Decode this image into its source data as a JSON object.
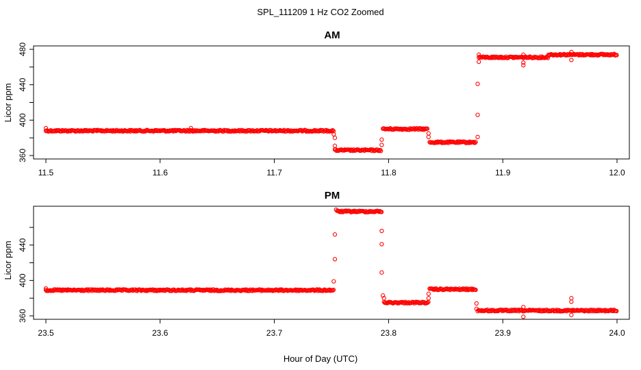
{
  "figure": {
    "title": "SPL_111209  1 Hz CO2 Zoomed",
    "xlabel": "Hour of Day (UTC)"
  },
  "style": {
    "point_color": "#ff0000",
    "axis_color": "#000000"
  },
  "chart_data": [
    {
      "type": "scatter",
      "title": "AM",
      "ylabel": "Licor ppm",
      "xlim": [
        11.5,
        12.0
      ],
      "ylim": [
        360,
        480
      ],
      "xticks": [
        "11.5",
        "11.6",
        "11.7",
        "11.8",
        "11.9",
        "12.0"
      ],
      "yticks": [
        "360",
        "400",
        "440",
        "480"
      ],
      "segments": [
        {
          "x0": 11.5,
          "x1": 11.752,
          "y": 388
        },
        {
          "x0": 11.753,
          "x1": 11.794,
          "y": 366
        },
        {
          "x0": 11.795,
          "x1": 11.834,
          "y": 390
        },
        {
          "x0": 11.836,
          "x1": 11.877,
          "y": 375
        },
        {
          "x0": 11.879,
          "x1": 11.94,
          "y": 471
        },
        {
          "x0": 11.94,
          "x1": 12.0,
          "y": 474
        }
      ],
      "points": [
        [
          11.5,
          391
        ],
        [
          11.627,
          391
        ],
        [
          11.752,
          384
        ],
        [
          11.753,
          380
        ],
        [
          11.753,
          371
        ],
        [
          11.794,
          372
        ],
        [
          11.794,
          378
        ],
        [
          11.835,
          385
        ],
        [
          11.835,
          381
        ],
        [
          11.878,
          381
        ],
        [
          11.878,
          406
        ],
        [
          11.878,
          441
        ],
        [
          11.879,
          466
        ],
        [
          11.879,
          474
        ],
        [
          11.918,
          474
        ],
        [
          11.918,
          462
        ],
        [
          11.918,
          465
        ],
        [
          11.96,
          468
        ],
        [
          11.96,
          477
        ]
      ]
    },
    {
      "type": "scatter",
      "title": "PM",
      "ylabel": "Licor ppm",
      "xlim": [
        23.5,
        24.0
      ],
      "ylim": [
        360,
        480
      ],
      "xticks": [
        "23.5",
        "23.6",
        "23.7",
        "23.8",
        "23.9",
        "24.0"
      ],
      "yticks": [
        "360",
        "400",
        "440"
      ],
      "segments": [
        {
          "x0": 23.5,
          "x1": 23.752,
          "y": 389
        },
        {
          "x0": 23.755,
          "x1": 23.794,
          "y": 478
        },
        {
          "x0": 23.796,
          "x1": 23.835,
          "y": 375
        },
        {
          "x0": 23.836,
          "x1": 23.877,
          "y": 390
        },
        {
          "x0": 23.878,
          "x1": 24.0,
          "y": 366
        }
      ],
      "points": [
        [
          23.5,
          391
        ],
        [
          23.752,
          399
        ],
        [
          23.753,
          424
        ],
        [
          23.753,
          452
        ],
        [
          23.754,
          480
        ],
        [
          23.794,
          456
        ],
        [
          23.794,
          441
        ],
        [
          23.794,
          409
        ],
        [
          23.795,
          383
        ],
        [
          23.796,
          380
        ],
        [
          23.835,
          380
        ],
        [
          23.835,
          385
        ],
        [
          23.877,
          368
        ],
        [
          23.877,
          374
        ],
        [
          23.918,
          359
        ],
        [
          23.918,
          370
        ],
        [
          23.96,
          361
        ],
        [
          23.96,
          376
        ],
        [
          23.96,
          380
        ]
      ]
    }
  ]
}
